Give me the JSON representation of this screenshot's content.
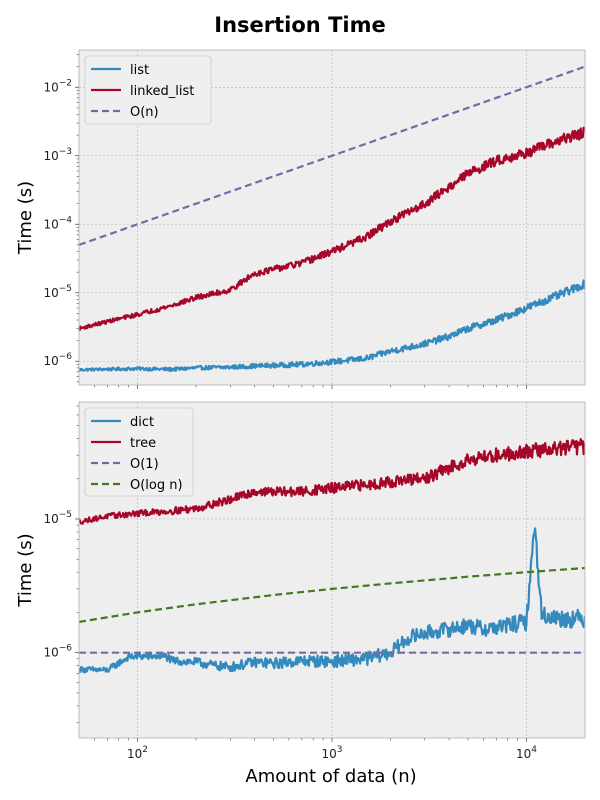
{
  "figure": {
    "title": "Insertion Time",
    "xlabel": "Amount of data (n)"
  },
  "colors": {
    "blue": "#348ABD",
    "red": "#A60628",
    "purple": "#7A68A6",
    "green": "#467821",
    "panel_bg": "#EEEEEE",
    "grid": "#B2B2B2"
  },
  "chart_data": [
    {
      "type": "line",
      "title": "",
      "xlabel": "",
      "ylabel": "Time (s)",
      "xscale": "log",
      "yscale": "log",
      "xlim": [
        50,
        20000
      ],
      "ylim": [
        4.5e-07,
        0.035
      ],
      "xticks": [
        100,
        1000,
        10000
      ],
      "yticks": [
        1e-06,
        1e-05,
        0.0001,
        0.001,
        0.01
      ],
      "grid": true,
      "legend": "top-left",
      "series": [
        {
          "name": "list",
          "color": "#348ABD",
          "style": "solid",
          "x": [
            50,
            60,
            80,
            100,
            150,
            200,
            300,
            400,
            500,
            700,
            1000,
            1500,
            2000,
            3000,
            4000,
            5000,
            7000,
            10000,
            15000,
            20000
          ],
          "y": [
            7.5e-07,
            7.6e-07,
            7.7e-07,
            7.8e-07,
            7.6e-07,
            8e-07,
            8.2e-07,
            8.5e-07,
            8.7e-07,
            9e-07,
            9.8e-07,
            1.1e-06,
            1.4e-06,
            1.8e-06,
            2.3e-06,
            3e-06,
            4e-06,
            6e-06,
            9.5e-06,
            1.35e-05
          ],
          "noise": 0.12
        },
        {
          "name": "linked_list",
          "color": "#A60628",
          "style": "solid",
          "x": [
            50,
            70,
            100,
            150,
            200,
            300,
            400,
            500,
            700,
            1000,
            1500,
            2000,
            3000,
            4000,
            5000,
            7000,
            10000,
            15000,
            20000
          ],
          "y": [
            3e-06,
            3.8e-06,
            4.8e-06,
            6.5e-06,
            8.5e-06,
            1.1e-05,
            1.9e-05,
            2.2e-05,
            2.7e-05,
            4e-05,
            6.5e-05,
            0.00011,
            0.0002,
            0.00035,
            0.00055,
            0.00085,
            0.0011,
            0.0017,
            0.0022
          ],
          "noise": 0.16
        },
        {
          "name": "O(n)",
          "color": "#7A68A6",
          "style": "dashed",
          "x": [
            50,
            20000
          ],
          "y": [
            5e-05,
            0.02
          ]
        }
      ]
    },
    {
      "type": "line",
      "title": "",
      "xlabel": "Amount of data (n)",
      "ylabel": "Time (s)",
      "xscale": "log",
      "yscale": "log",
      "xlim": [
        50,
        20000
      ],
      "ylim": [
        2.3e-07,
        7.5e-05
      ],
      "xticks": [
        100,
        1000,
        10000
      ],
      "xtick_labels": [
        "10^2",
        "10^3",
        "10^4"
      ],
      "yticks": [
        1e-06,
        1e-05
      ],
      "grid": true,
      "legend": "top-left",
      "series": [
        {
          "name": "dict",
          "color": "#348ABD",
          "style": "solid",
          "x": [
            50,
            70,
            90,
            100,
            140,
            150,
            200,
            250,
            300,
            400,
            500,
            700,
            1000,
            1500,
            2000,
            2500,
            3000,
            4000,
            5000,
            6000,
            8000,
            10000,
            11000,
            12000,
            15000,
            20000
          ],
          "y": [
            7.5e-07,
            7.4e-07,
            9.3e-07,
            9.4e-07,
            9.4e-07,
            8.7e-07,
            8.5e-07,
            8e-07,
            7.8e-07,
            8.5e-07,
            8.3e-07,
            8.7e-07,
            8.6e-07,
            9e-07,
            1e-06,
            1.3e-06,
            1.4e-06,
            1.5e-06,
            1.6e-06,
            1.5e-06,
            1.6e-06,
            1.7e-06,
            9e-06,
            1.9e-06,
            1.8e-06,
            1.8e-06
          ],
          "noise": 0.14
        },
        {
          "name": "tree",
          "color": "#A60628",
          "style": "solid",
          "x": [
            50,
            70,
            100,
            150,
            200,
            300,
            400,
            500,
            700,
            1000,
            1500,
            2000,
            3000,
            4000,
            5000,
            7000,
            10000,
            15000,
            20000
          ],
          "y": [
            9.5e-06,
            1.05e-05,
            1.1e-05,
            1.15e-05,
            1.2e-05,
            1.4e-05,
            1.6e-05,
            1.6e-05,
            1.6e-05,
            1.7e-05,
            1.8e-05,
            1.9e-05,
            2e-05,
            2.4e-05,
            2.8e-05,
            3e-05,
            3.2e-05,
            3.4e-05,
            3.5e-05
          ],
          "noise": 0.12
        },
        {
          "name": "O(1)",
          "color": "#7A68A6",
          "style": "dashed",
          "x": [
            50,
            20000
          ],
          "y": [
            1e-06,
            1e-06
          ]
        },
        {
          "name": "O(log n)",
          "color": "#467821",
          "style": "dashed",
          "x": [
            50,
            100,
            200,
            500,
            1000,
            2000,
            5000,
            10000,
            20000
          ],
          "y": [
            1.7e-06,
            2e-06,
            2.3e-06,
            2.7e-06,
            3e-06,
            3.3e-06,
            3.7e-06,
            4e-06,
            4.3e-06
          ]
        }
      ]
    }
  ]
}
